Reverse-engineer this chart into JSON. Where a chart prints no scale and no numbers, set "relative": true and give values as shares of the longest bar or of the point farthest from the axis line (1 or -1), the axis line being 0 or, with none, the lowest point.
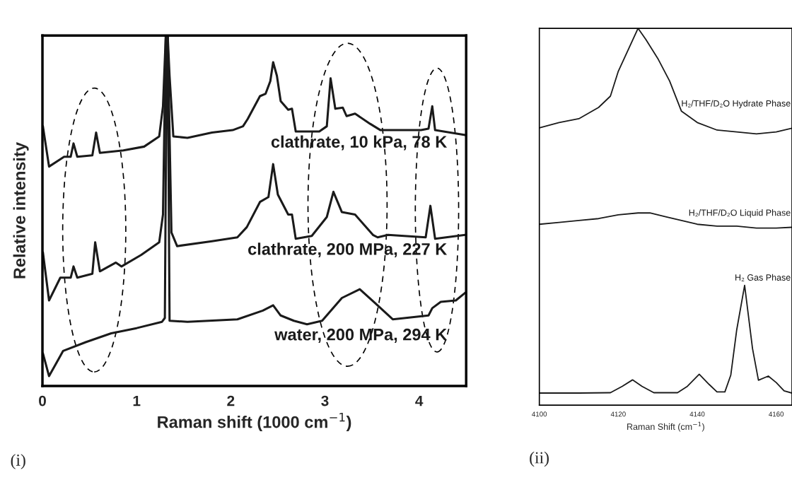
{
  "chart_data": [
    {
      "type": "line",
      "xlabel": "Raman shift (1000 cm$^{−1}$)",
      "ylabel": "Relative intensity",
      "relative": true,
      "xlim": [
        0,
        4.5
      ],
      "xticks": [
        0,
        1,
        2,
        3,
        4
      ],
      "annotations": [
        "(i)"
      ],
      "series": [
        {
          "name": "clathrate, 10 kPa, 78 K",
          "color": "#1a1a1a",
          "x": [
            0.005,
            0.07,
            0.19,
            0.23,
            0.3,
            0.33,
            0.37,
            0.53,
            0.57,
            0.61,
            0.86,
            1.08,
            1.24,
            1.28,
            1.31,
            1.33,
            1.35,
            1.39,
            1.54,
            1.8,
            2.02,
            2.13,
            2.18,
            2.31,
            2.37,
            2.42,
            2.45,
            2.49,
            2.53,
            2.61,
            2.65,
            2.69,
            2.94,
            3.02,
            3.06,
            3.11,
            3.19,
            3.23,
            3.32,
            3.48,
            3.59,
            4.02,
            4.1,
            4.14,
            4.17,
            4.49
          ],
          "values": [
            0.741,
            0.626,
            0.647,
            0.654,
            0.654,
            0.692,
            0.654,
            0.658,
            0.723,
            0.665,
            0.672,
            0.683,
            0.712,
            0.798,
            1.0,
            1.0,
            0.885,
            0.712,
            0.708,
            0.723,
            0.73,
            0.741,
            0.762,
            0.827,
            0.834,
            0.87,
            0.924,
            0.885,
            0.813,
            0.788,
            0.791,
            0.726,
            0.726,
            0.741,
            0.878,
            0.791,
            0.794,
            0.77,
            0.777,
            0.748,
            0.73,
            0.73,
            0.734,
            0.798,
            0.73,
            0.716
          ]
        },
        {
          "name": "clathrate, 200 MPa, 227 K",
          "color": "#1a1a1a",
          "x": [
            0.005,
            0.07,
            0.19,
            0.23,
            0.3,
            0.33,
            0.37,
            0.53,
            0.56,
            0.61,
            0.78,
            0.84,
            1.05,
            1.24,
            1.28,
            1.31,
            1.33,
            1.37,
            1.43,
            1.8,
            2.07,
            2.17,
            2.31,
            2.4,
            2.45,
            2.5,
            2.61,
            2.65,
            2.69,
            2.86,
            3.02,
            3.09,
            3.18,
            3.32,
            3.51,
            3.56,
            3.67,
            4.07,
            4.12,
            4.17,
            4.49
          ],
          "values": [
            0.381,
            0.244,
            0.309,
            0.309,
            0.309,
            0.341,
            0.309,
            0.32,
            0.41,
            0.327,
            0.352,
            0.341,
            0.374,
            0.41,
            0.489,
            1.0,
            1.0,
            0.438,
            0.399,
            0.413,
            0.424,
            0.453,
            0.525,
            0.539,
            0.633,
            0.546,
            0.489,
            0.489,
            0.42,
            0.428,
            0.482,
            0.554,
            0.496,
            0.489,
            0.431,
            0.424,
            0.431,
            0.424,
            0.514,
            0.42,
            0.431
          ]
        },
        {
          "name": "water, 200 MPa, 294 K",
          "color": "#1a1a1a",
          "x": [
            0.005,
            0.07,
            0.22,
            0.46,
            0.73,
            1.0,
            1.27,
            1.3,
            1.32,
            1.33,
            1.35,
            1.54,
            2.07,
            2.34,
            2.45,
            2.53,
            2.67,
            2.81,
            2.97,
            3.18,
            3.37,
            3.53,
            3.72,
            4.1,
            4.14,
            4.23,
            4.39,
            4.49
          ],
          "values": [
            0.093,
            0.028,
            0.1,
            0.125,
            0.15,
            0.165,
            0.183,
            0.194,
            1.0,
            1.0,
            0.186,
            0.183,
            0.19,
            0.215,
            0.23,
            0.201,
            0.186,
            0.176,
            0.186,
            0.251,
            0.276,
            0.237,
            0.19,
            0.201,
            0.222,
            0.24,
            0.244,
            0.266
          ]
        }
      ]
    },
    {
      "type": "line",
      "xlabel": "Raman Shift (cm$^{−1}$)",
      "relative": true,
      "xlim": [
        4100,
        4164
      ],
      "xticks": [
        4100,
        4120,
        4140,
        4160
      ],
      "annotations": [
        "(ii)"
      ],
      "series": [
        {
          "name": "H₂/THF/D₂O Hydrate Phase",
          "color": "#1a1a1a",
          "x": [
            4100,
            4105,
            4110,
            4115,
            4118,
            4120,
            4125,
            4127,
            4130,
            4133,
            4136,
            4140,
            4145,
            4150,
            4155,
            4160,
            4164
          ],
          "values": [
            0.736,
            0.75,
            0.76,
            0.79,
            0.82,
            0.886,
            1.0,
            0.97,
            0.92,
            0.86,
            0.78,
            0.75,
            0.73,
            0.725,
            0.72,
            0.725,
            0.735
          ]
        },
        {
          "name": "H₂/THF/D₂O Liquid Phase",
          "color": "#1a1a1a",
          "x": [
            4100,
            4105,
            4110,
            4115,
            4120,
            4125,
            4128,
            4132,
            4136,
            4140,
            4145,
            4150,
            4155,
            4160,
            4164
          ],
          "values": [
            0.48,
            0.485,
            0.49,
            0.495,
            0.505,
            0.51,
            0.51,
            0.5,
            0.49,
            0.48,
            0.475,
            0.475,
            0.47,
            0.47,
            0.472
          ]
        },
        {
          "name": "H₂ Gas Phase",
          "color": "#1a1a1a",
          "x": [
            4100,
            4110,
            4118,
            4121,
            4123.6,
            4126,
            4129,
            4135,
            4137.5,
            4140.5,
            4143,
            4145,
            4147,
            4148.5,
            4150,
            4152,
            4154,
            4155.5,
            4158,
            4160,
            4162,
            4164
          ],
          "values": [
            0.032,
            0.032,
            0.033,
            0.05,
            0.067,
            0.05,
            0.033,
            0.033,
            0.05,
            0.082,
            0.055,
            0.035,
            0.035,
            0.08,
            0.2,
            0.318,
            0.15,
            0.066,
            0.077,
            0.06,
            0.038,
            0.032
          ]
        }
      ]
    }
  ]
}
